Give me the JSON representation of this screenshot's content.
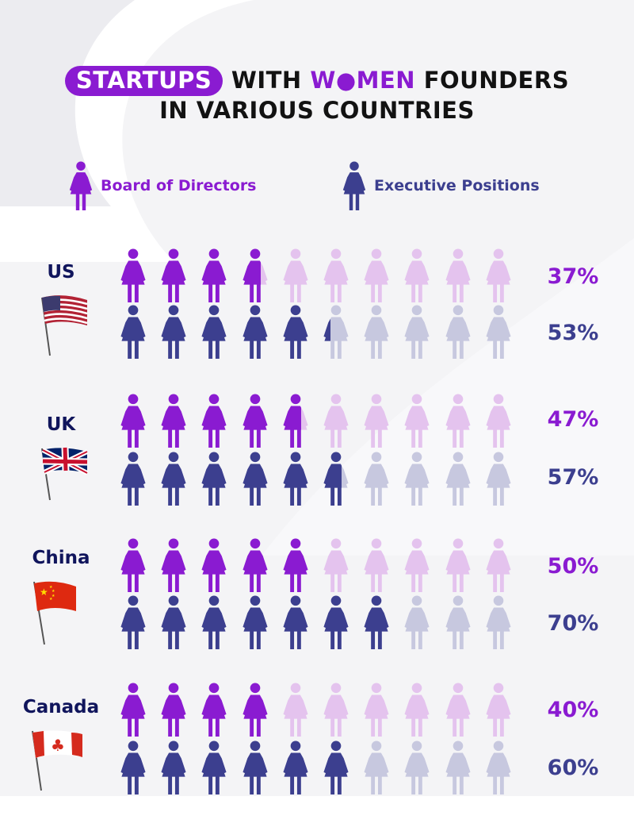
{
  "title": {
    "pill": "STARTUPS",
    "part_with": "WITH",
    "part_w": "W",
    "part_men": "MEN",
    "part_founders": "FOUNDERS",
    "line2": "IN VARIOUS COUNTRIES"
  },
  "colors": {
    "board": "#8a1bd1",
    "board_faded": "#e4c3ee",
    "executive": "#3c3f8f",
    "executive_faded": "#c7c8df",
    "pill_bg": "#8a1bd1"
  },
  "legend": [
    {
      "label": "Board of Directors",
      "icon": "woman-icon-purple",
      "color": "#8a1bd1"
    },
    {
      "label": "Executive Positions",
      "icon": "woman-icon-navy",
      "color": "#3c3f8f"
    }
  ],
  "chart_data": {
    "type": "pictograph",
    "icons_per_row": 10,
    "unit_per_icon": 10,
    "series": [
      {
        "name": "Board of Directors",
        "values": [
          37,
          47,
          50,
          40
        ]
      },
      {
        "name": "Executive Positions",
        "values": [
          53,
          57,
          70,
          60
        ]
      }
    ],
    "categories": [
      "US",
      "UK",
      "China",
      "Canada"
    ],
    "rows": [
      {
        "country": "US",
        "flag": "us-flag-icon",
        "board": 37,
        "board_label": "37%",
        "executive": 53,
        "executive_label": "53%"
      },
      {
        "country": "UK",
        "flag": "uk-flag-icon",
        "board": 47,
        "board_label": "47%",
        "executive": 57,
        "executive_label": "57%"
      },
      {
        "country": "China",
        "flag": "china-flag-icon",
        "board": 50,
        "board_label": "50%",
        "executive": 70,
        "executive_label": "70%"
      },
      {
        "country": "Canada",
        "flag": "canada-flag-icon",
        "board": 40,
        "board_label": "40%",
        "executive": 60,
        "executive_label": "60%"
      }
    ]
  }
}
